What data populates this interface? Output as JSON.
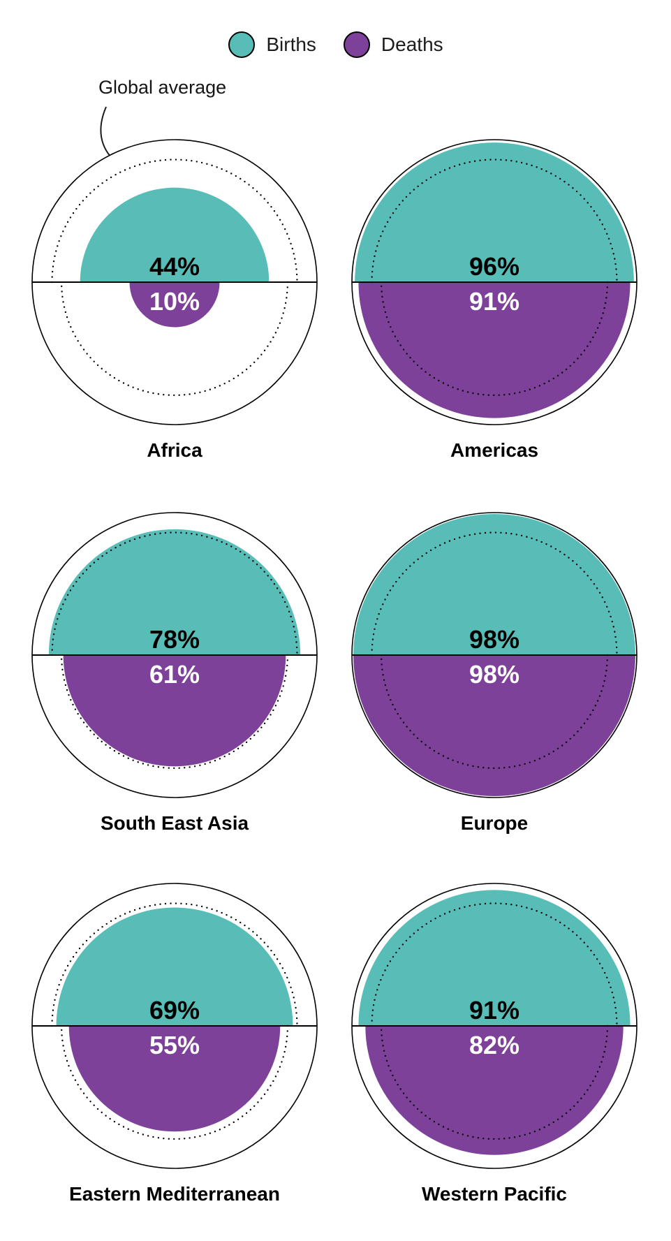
{
  "legend": {
    "items": [
      {
        "id": "births",
        "label": "Births",
        "color": "#58bdb7"
      },
      {
        "id": "deaths",
        "label": "Deaths",
        "color": "#7d4199"
      }
    ]
  },
  "annotation": {
    "global_average_label": "Global average"
  },
  "chart_data": {
    "type": "split-semicircle-area-gauges",
    "description": "Six circles, one per WHO region. Top teal semicircle area encodes % of births registered, bottom purple semicircle encodes % of deaths registered (radius proportional to sqrt of percent of full outer circle). Dotted circles mark the global average.",
    "series_labels": [
      "Births",
      "Deaths"
    ],
    "categories": [
      "Africa",
      "Americas",
      "South East Asia",
      "Europe",
      "Eastern Mediterranean",
      "Western Pacific"
    ],
    "regions": [
      {
        "name": "Africa",
        "births": 44,
        "deaths": 10
      },
      {
        "name": "Americas",
        "births": 96,
        "deaths": 91
      },
      {
        "name": "South East Asia",
        "births": 78,
        "deaths": 61
      },
      {
        "name": "Europe",
        "births": 98,
        "deaths": 98
      },
      {
        "name": "Eastern Mediterranean",
        "births": 69,
        "deaths": 55
      },
      {
        "name": "Western Pacific",
        "births": 91,
        "deaths": 82
      }
    ],
    "global_average": {
      "births": 74,
      "deaths": 63
    },
    "value_suffix": "%",
    "colors": {
      "births": "#58bdb7",
      "deaths": "#7d4199",
      "outline": "#000000",
      "births_value_text": "#000000",
      "deaths_value_text": "#ffffff"
    },
    "layout_hints": {
      "grid": "2 columns x 3 rows",
      "legend_position": "top-center"
    }
  }
}
